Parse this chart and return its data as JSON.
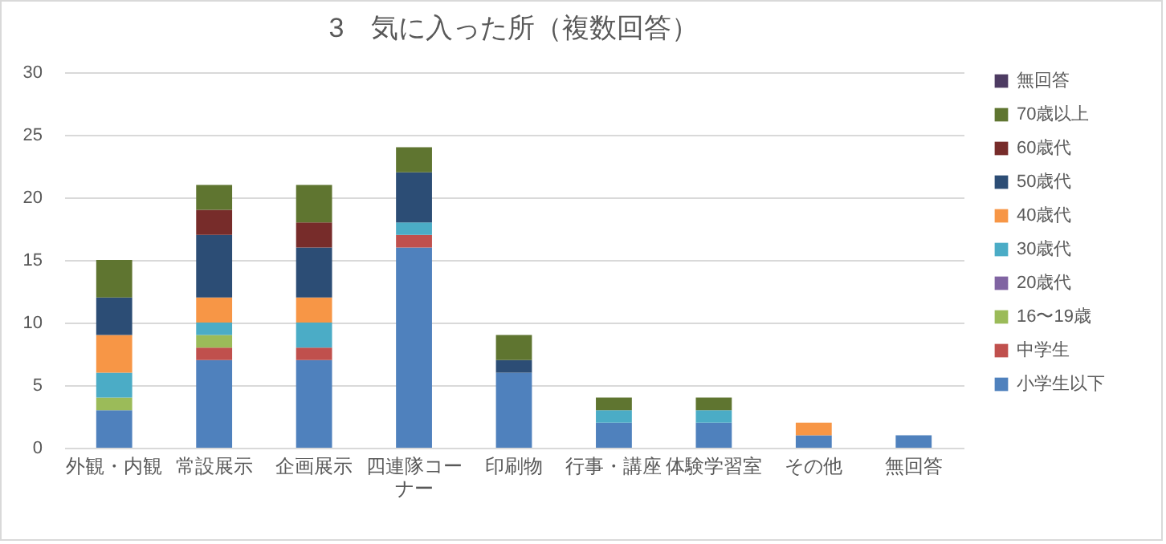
{
  "chart_data": {
    "type": "bar",
    "title": "3　気に入った所（複数回答）",
    "stacked": true,
    "grid": "y",
    "legend": "right",
    "categories": [
      "外観・内観",
      "常設展示",
      "企画展示",
      "四連隊コーナー",
      "印刷物",
      "行事・講座",
      "体験学習室",
      "その他",
      "無回答"
    ],
    "ylim": [
      0,
      30
    ],
    "yticks": [
      0,
      5,
      10,
      15,
      20,
      25,
      30
    ],
    "series": [
      {
        "name": "小学生以下",
        "color": "#4f81bd",
        "values": [
          3,
          7,
          7,
          16,
          6,
          2,
          2,
          1,
          1
        ]
      },
      {
        "name": "中学生",
        "color": "#c0504d",
        "values": [
          0,
          1,
          1,
          1,
          0,
          0,
          0,
          0,
          0
        ]
      },
      {
        "name": "16〜19歳",
        "color": "#9bbb59",
        "values": [
          1,
          1,
          0,
          0,
          0,
          0,
          0,
          0,
          0
        ]
      },
      {
        "name": "20歳代",
        "color": "#8064a2",
        "values": [
          0,
          0,
          0,
          0,
          0,
          0,
          0,
          0,
          0
        ]
      },
      {
        "name": "30歳代",
        "color": "#4bacc6",
        "values": [
          2,
          1,
          2,
          1,
          0,
          1,
          1,
          0,
          0
        ]
      },
      {
        "name": "40歳代",
        "color": "#f79646",
        "values": [
          3,
          2,
          2,
          0,
          0,
          0,
          0,
          1,
          0
        ]
      },
      {
        "name": "50歳代",
        "color": "#2c4d75",
        "values": [
          3,
          5,
          4,
          4,
          1,
          0,
          0,
          0,
          0
        ]
      },
      {
        "name": "60歳代",
        "color": "#772c2a",
        "values": [
          0,
          2,
          2,
          0,
          0,
          0,
          0,
          0,
          0
        ]
      },
      {
        "name": "70歳以上",
        "color": "#5f7530",
        "values": [
          3,
          2,
          3,
          2,
          2,
          1,
          1,
          0,
          0
        ]
      },
      {
        "name": "無回答",
        "color": "#4d3b62",
        "values": [
          0,
          0,
          0,
          0,
          0,
          0,
          0,
          0,
          0
        ]
      }
    ]
  }
}
